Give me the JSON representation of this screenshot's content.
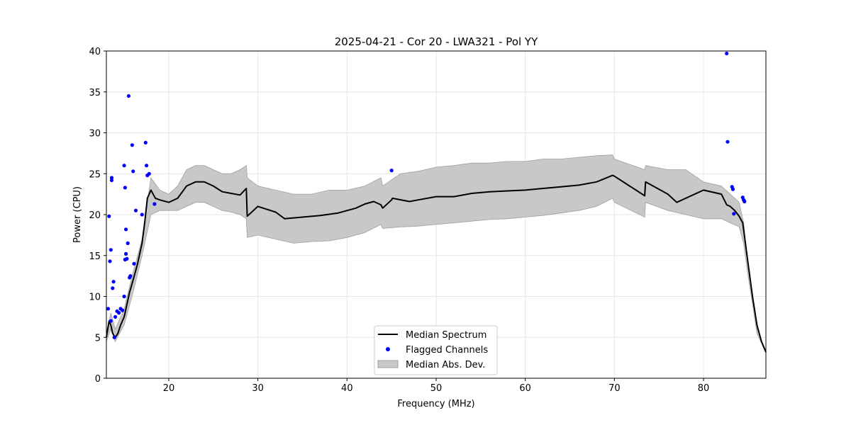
{
  "chart_data": {
    "type": "line",
    "title": "2025-04-21 - Cor 20 - LWA321 - Pol YY",
    "xlabel": "Frequency (MHz)",
    "ylabel": "Power (CPU)",
    "xlim": [
      13.0,
      87.0
    ],
    "ylim": [
      0,
      40
    ],
    "xticks": [
      20,
      30,
      40,
      50,
      60,
      70,
      80
    ],
    "yticks": [
      0,
      5,
      10,
      15,
      20,
      25,
      30,
      35,
      40
    ],
    "grid": true,
    "legend_position": "lower-center",
    "legend": [
      "Median Spectrum",
      "Flagged Channels",
      "Median Abs. Dev."
    ],
    "colors": {
      "median": "#000000",
      "flagged": "#0000ff",
      "mad_fill": "#c8c8c8",
      "mad_edge": "#a0a0a0"
    },
    "series": [
      {
        "name": "Median Spectrum",
        "x": [
          13.0,
          13.3,
          13.5,
          13.7,
          14.0,
          14.3,
          14.6,
          15.0,
          15.3,
          15.6,
          16.0,
          16.5,
          17.0,
          17.3,
          17.6,
          18.0,
          18.5,
          19.0,
          20.0,
          21.0,
          22.0,
          23.0,
          24.0,
          25.0,
          26.0,
          27.0,
          28.0,
          28.7,
          28.8,
          30.0,
          32.0,
          33.0,
          35.0,
          37.0,
          39.0,
          41.0,
          42.0,
          43.0,
          43.8,
          44.0,
          45.0,
          45.1,
          47.0,
          48.0,
          50.0,
          52.0,
          54.0,
          56.0,
          58.0,
          60.0,
          62.0,
          64.0,
          66.0,
          68.0,
          69.8,
          70.0,
          73.4,
          73.5,
          76.0,
          77.0,
          80.0,
          82.0,
          82.6,
          83.0,
          83.5,
          84.0,
          84.4,
          85.0,
          85.5,
          86.0,
          86.5,
          87.0
        ],
        "values": [
          5.0,
          7.0,
          6.5,
          5.5,
          5.0,
          5.5,
          6.5,
          7.5,
          9.0,
          10.5,
          12.0,
          14.0,
          16.5,
          19.0,
          22.0,
          23.0,
          22.0,
          21.8,
          21.5,
          22.0,
          23.5,
          24.0,
          24.0,
          23.5,
          22.8,
          22.6,
          22.4,
          23.2,
          19.8,
          21.0,
          20.3,
          19.5,
          19.7,
          19.9,
          20.2,
          20.8,
          21.3,
          21.6,
          21.2,
          20.8,
          21.8,
          22.0,
          21.6,
          21.8,
          22.2,
          22.2,
          22.6,
          22.8,
          22.9,
          23.0,
          23.2,
          23.4,
          23.6,
          24.0,
          24.8,
          24.7,
          22.3,
          24.0,
          22.5,
          21.5,
          23.0,
          22.5,
          21.2,
          21.0,
          20.5,
          19.8,
          19.0,
          14.0,
          10.0,
          6.5,
          4.5,
          3.2
        ]
      },
      {
        "name": "Median Abs. Dev.",
        "x": [
          13.0,
          13.5,
          14.0,
          15.0,
          16.0,
          17.0,
          18.0,
          19.0,
          20.0,
          21.0,
          22.0,
          23.0,
          24.0,
          25.0,
          26.0,
          27.0,
          28.0,
          28.7,
          28.8,
          30.0,
          32.0,
          34.0,
          36.0,
          38.0,
          40.0,
          42.0,
          43.8,
          44.0,
          46.0,
          48.0,
          50.0,
          52.0,
          54.0,
          56.0,
          58.0,
          60.0,
          62.0,
          64.0,
          66.0,
          68.0,
          69.8,
          70.0,
          73.4,
          73.5,
          76.0,
          78.0,
          80.0,
          82.0,
          83.0,
          84.0,
          84.5,
          85.0,
          86.0,
          87.0
        ],
        "upper": [
          5.5,
          8.0,
          6.0,
          8.5,
          13.0,
          17.0,
          24.5,
          23.0,
          22.5,
          23.5,
          25.5,
          26.0,
          26.0,
          25.5,
          25.0,
          25.0,
          25.5,
          26.0,
          24.5,
          23.5,
          23.0,
          22.5,
          22.5,
          23.0,
          23.0,
          23.5,
          24.5,
          23.5,
          25.0,
          25.3,
          25.8,
          26.0,
          26.3,
          26.3,
          26.5,
          26.5,
          26.8,
          26.8,
          27.0,
          27.2,
          27.3,
          26.8,
          25.5,
          26.0,
          25.5,
          25.5,
          24.0,
          23.5,
          22.5,
          21.5,
          19.0,
          14.0,
          6.0,
          3.3
        ],
        "lower": [
          4.5,
          6.0,
          4.5,
          6.5,
          10.5,
          15.0,
          20.0,
          20.5,
          20.5,
          20.5,
          21.0,
          21.5,
          21.5,
          21.0,
          20.5,
          20.3,
          20.0,
          19.5,
          17.2,
          17.5,
          17.0,
          16.5,
          16.7,
          16.8,
          17.2,
          17.8,
          18.8,
          18.3,
          18.5,
          18.6,
          18.8,
          19.0,
          19.2,
          19.4,
          19.5,
          19.7,
          19.9,
          20.2,
          20.5,
          21.0,
          22.0,
          21.5,
          19.7,
          21.5,
          20.5,
          20.0,
          19.5,
          19.5,
          19.0,
          18.5,
          16.5,
          12.5,
          5.5,
          3.1
        ]
      },
      {
        "name": "Flagged Channels",
        "x": [
          13.2,
          13.3,
          13.4,
          13.5,
          13.6,
          13.6,
          13.7,
          13.8,
          14.0,
          14.2,
          14.4,
          14.6,
          14.8,
          15.0,
          15.0,
          15.1,
          15.1,
          15.2,
          15.2,
          15.3,
          15.4,
          15.5,
          15.6,
          15.7,
          15.9,
          16.0,
          16.1,
          16.3,
          17.0,
          17.4,
          17.5,
          17.6,
          17.8,
          18.4,
          45.0,
          82.6,
          82.7,
          83.2,
          83.3,
          83.4,
          84.4,
          84.5,
          84.6,
          13.5,
          13.9
        ],
        "y": [
          8.5,
          19.8,
          14.3,
          15.7,
          24.5,
          24.2,
          11.0,
          11.8,
          7.5,
          8.2,
          8.0,
          8.5,
          8.3,
          26.0,
          10.0,
          14.5,
          23.3,
          15.2,
          18.2,
          14.6,
          16.5,
          34.5,
          12.3,
          12.5,
          28.5,
          25.3,
          14.0,
          20.5,
          20.0,
          28.8,
          26.0,
          24.8,
          25.0,
          21.3,
          25.4,
          39.7,
          28.9,
          23.4,
          23.1,
          20.1,
          22.1,
          21.8,
          21.6,
          7.0,
          5.0
        ]
      }
    ]
  }
}
